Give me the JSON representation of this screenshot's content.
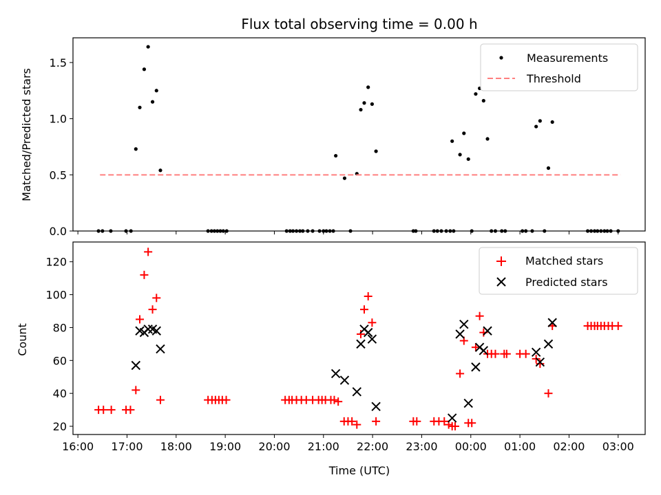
{
  "chart_data": [
    {
      "type": "scatter",
      "title": "Flux total observing time = 0.00 h",
      "xlabel": "",
      "ylabel": "Matched/Predicted stars",
      "xlim": [
        15.9,
        27.55
      ],
      "ylim": [
        0,
        1.72
      ],
      "xticks": [
        {
          "v": 16,
          "label": "16:00"
        },
        {
          "v": 17,
          "label": "17:00"
        },
        {
          "v": 18,
          "label": "18:00"
        },
        {
          "v": 19,
          "label": "19:00"
        },
        {
          "v": 20,
          "label": "20:00"
        },
        {
          "v": 21,
          "label": "21:00"
        },
        {
          "v": 22,
          "label": "22:00"
        },
        {
          "v": 23,
          "label": "23:00"
        },
        {
          "v": 24,
          "label": "00:00"
        },
        {
          "v": 25,
          "label": "01:00"
        },
        {
          "v": 26,
          "label": "02:00"
        },
        {
          "v": 27,
          "label": "03:00"
        }
      ],
      "yticks": [
        {
          "v": 0,
          "label": "0.0"
        },
        {
          "v": 0.5,
          "label": "0.5"
        },
        {
          "v": 1.0,
          "label": "1.0"
        },
        {
          "v": 1.5,
          "label": "1.5"
        }
      ],
      "legend": {
        "position": "top-right",
        "entries": [
          "Measurements",
          "Threshold"
        ]
      },
      "series": [
        {
          "name": "Measurements",
          "marker": "dot",
          "color": "#000000",
          "points": [
            [
              16.42,
              0
            ],
            [
              16.5,
              0
            ],
            [
              16.67,
              0
            ],
            [
              16.98,
              0
            ],
            [
              17.08,
              0
            ],
            [
              17.18,
              0.73
            ],
            [
              17.26,
              1.1
            ],
            [
              17.35,
              1.44
            ],
            [
              17.43,
              1.64
            ],
            [
              17.52,
              1.15
            ],
            [
              17.6,
              1.25
            ],
            [
              17.68,
              0.54
            ],
            [
              18.65,
              0
            ],
            [
              18.72,
              0
            ],
            [
              18.78,
              0
            ],
            [
              18.84,
              0
            ],
            [
              18.9,
              0
            ],
            [
              18.96,
              0
            ],
            [
              19.03,
              0
            ],
            [
              20.25,
              0
            ],
            [
              20.32,
              0
            ],
            [
              20.38,
              0
            ],
            [
              20.45,
              0
            ],
            [
              20.52,
              0
            ],
            [
              20.58,
              0
            ],
            [
              20.68,
              0
            ],
            [
              20.78,
              0
            ],
            [
              20.92,
              0
            ],
            [
              21.0,
              0
            ],
            [
              21.06,
              0
            ],
            [
              21.13,
              0
            ],
            [
              21.2,
              0
            ],
            [
              21.25,
              0.67
            ],
            [
              21.43,
              0.47
            ],
            [
              21.55,
              0
            ],
            [
              21.68,
              0.51
            ],
            [
              21.76,
              1.08
            ],
            [
              21.83,
              1.14
            ],
            [
              21.91,
              1.28
            ],
            [
              21.99,
              1.13
            ],
            [
              22.07,
              0.71
            ],
            [
              22.83,
              0
            ],
            [
              22.88,
              0
            ],
            [
              23.25,
              0
            ],
            [
              23.32,
              0
            ],
            [
              23.4,
              0
            ],
            [
              23.5,
              0
            ],
            [
              23.58,
              0
            ],
            [
              23.65,
              0
            ],
            [
              23.62,
              0.8
            ],
            [
              23.78,
              0.68
            ],
            [
              23.86,
              0.87
            ],
            [
              23.95,
              0.64
            ],
            [
              24.02,
              0
            ],
            [
              24.1,
              1.22
            ],
            [
              24.18,
              1.27
            ],
            [
              24.26,
              1.16
            ],
            [
              24.34,
              0.82
            ],
            [
              24.42,
              0
            ],
            [
              24.5,
              0
            ],
            [
              24.63,
              0
            ],
            [
              24.7,
              0
            ],
            [
              25.05,
              0
            ],
            [
              25.12,
              0
            ],
            [
              25.25,
              0
            ],
            [
              25.5,
              0
            ],
            [
              25.33,
              0.93
            ],
            [
              25.41,
              0.98
            ],
            [
              25.58,
              0.56
            ],
            [
              25.66,
              0.97
            ],
            [
              26.38,
              0
            ],
            [
              26.45,
              0
            ],
            [
              26.52,
              0
            ],
            [
              26.58,
              0
            ],
            [
              26.65,
              0
            ],
            [
              26.72,
              0
            ],
            [
              26.78,
              0
            ],
            [
              26.85,
              0
            ],
            [
              27.0,
              0
            ]
          ]
        },
        {
          "name": "Threshold",
          "marker": "dashed-line",
          "color": "#ff7f7f",
          "points": [
            [
              16.45,
              0.5
            ],
            [
              27.05,
              0.5
            ]
          ]
        }
      ]
    },
    {
      "type": "scatter",
      "title": "",
      "xlabel": "Time (UTC)",
      "ylabel": "Count",
      "xlim": [
        15.9,
        27.55
      ],
      "ylim": [
        15,
        132
      ],
      "xticks": [
        {
          "v": 16,
          "label": "16:00"
        },
        {
          "v": 17,
          "label": "17:00"
        },
        {
          "v": 18,
          "label": "18:00"
        },
        {
          "v": 19,
          "label": "19:00"
        },
        {
          "v": 20,
          "label": "20:00"
        },
        {
          "v": 21,
          "label": "21:00"
        },
        {
          "v": 22,
          "label": "22:00"
        },
        {
          "v": 23,
          "label": "23:00"
        },
        {
          "v": 24,
          "label": "00:00"
        },
        {
          "v": 25,
          "label": "01:00"
        },
        {
          "v": 26,
          "label": "02:00"
        },
        {
          "v": 27,
          "label": "03:00"
        }
      ],
      "yticks": [
        {
          "v": 20,
          "label": "20"
        },
        {
          "v": 40,
          "label": "40"
        },
        {
          "v": 60,
          "label": "60"
        },
        {
          "v": 80,
          "label": "80"
        },
        {
          "v": 100,
          "label": "100"
        },
        {
          "v": 120,
          "label": "120"
        }
      ],
      "legend": {
        "position": "top-right",
        "entries": [
          "Matched stars",
          "Predicted stars"
        ]
      },
      "series": [
        {
          "name": "Matched stars",
          "marker": "plus",
          "color": "#ff0000",
          "points": [
            [
              16.42,
              30
            ],
            [
              16.52,
              30
            ],
            [
              16.68,
              30
            ],
            [
              16.98,
              30
            ],
            [
              17.07,
              30
            ],
            [
              17.18,
              42
            ],
            [
              17.26,
              85
            ],
            [
              17.35,
              112
            ],
            [
              17.43,
              126
            ],
            [
              17.52,
              91
            ],
            [
              17.6,
              98
            ],
            [
              17.68,
              36
            ],
            [
              18.65,
              36
            ],
            [
              18.73,
              36
            ],
            [
              18.8,
              36
            ],
            [
              18.87,
              36
            ],
            [
              18.94,
              36
            ],
            [
              19.02,
              36
            ],
            [
              20.22,
              36
            ],
            [
              20.3,
              36
            ],
            [
              20.36,
              36
            ],
            [
              20.45,
              36
            ],
            [
              20.55,
              36
            ],
            [
              20.65,
              36
            ],
            [
              20.78,
              36
            ],
            [
              20.9,
              36
            ],
            [
              20.97,
              36
            ],
            [
              21.04,
              36
            ],
            [
              21.15,
              36
            ],
            [
              21.22,
              36
            ],
            [
              21.3,
              35
            ],
            [
              21.42,
              23
            ],
            [
              21.5,
              23
            ],
            [
              21.58,
              23
            ],
            [
              21.68,
              21
            ],
            [
              21.76,
              76
            ],
            [
              21.83,
              91
            ],
            [
              21.91,
              99
            ],
            [
              21.99,
              83
            ],
            [
              22.07,
              23
            ],
            [
              22.83,
              23
            ],
            [
              22.9,
              23
            ],
            [
              23.25,
              23
            ],
            [
              23.35,
              23
            ],
            [
              23.46,
              23
            ],
            [
              23.55,
              21
            ],
            [
              23.62,
              20
            ],
            [
              23.68,
              20
            ],
            [
              23.78,
              52
            ],
            [
              23.86,
              72
            ],
            [
              23.95,
              22
            ],
            [
              24.02,
              22
            ],
            [
              24.1,
              68
            ],
            [
              24.18,
              87
            ],
            [
              24.26,
              77
            ],
            [
              24.34,
              64
            ],
            [
              24.42,
              64
            ],
            [
              24.5,
              64
            ],
            [
              24.68,
              64
            ],
            [
              24.73,
              64
            ],
            [
              25.0,
              64
            ],
            [
              25.12,
              64
            ],
            [
              25.33,
              61
            ],
            [
              25.41,
              58
            ],
            [
              25.58,
              40
            ],
            [
              25.66,
              81
            ],
            [
              26.38,
              81
            ],
            [
              26.45,
              81
            ],
            [
              26.52,
              81
            ],
            [
              26.58,
              81
            ],
            [
              26.65,
              81
            ],
            [
              26.72,
              81
            ],
            [
              26.8,
              81
            ],
            [
              26.88,
              81
            ],
            [
              27.0,
              81
            ]
          ]
        },
        {
          "name": "Predicted stars",
          "marker": "x",
          "color": "#000000",
          "points": [
            [
              17.18,
              57
            ],
            [
              17.26,
              78
            ],
            [
              17.35,
              77
            ],
            [
              17.43,
              79
            ],
            [
              17.52,
              79
            ],
            [
              17.6,
              78
            ],
            [
              17.68,
              67
            ],
            [
              21.25,
              52
            ],
            [
              21.43,
              48
            ],
            [
              21.68,
              41
            ],
            [
              21.76,
              70
            ],
            [
              21.83,
              79
            ],
            [
              21.91,
              77
            ],
            [
              21.99,
              73
            ],
            [
              22.07,
              32
            ],
            [
              23.62,
              25
            ],
            [
              23.78,
              76
            ],
            [
              23.86,
              82
            ],
            [
              23.95,
              34
            ],
            [
              24.1,
              56
            ],
            [
              24.18,
              68
            ],
            [
              24.26,
              66
            ],
            [
              24.34,
              78
            ],
            [
              25.33,
              65
            ],
            [
              25.41,
              59
            ],
            [
              25.58,
              70
            ],
            [
              25.66,
              83
            ]
          ]
        }
      ]
    }
  ]
}
